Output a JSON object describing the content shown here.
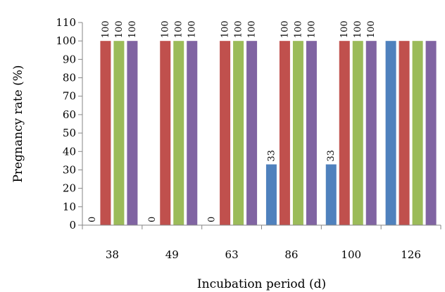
{
  "chart_data": {
    "type": "bar",
    "title": "",
    "xlabel": "Incubation period (d)",
    "ylabel": "Pregnancy rate (%)",
    "ylim": [
      0,
      110
    ],
    "yticks": [
      0,
      10,
      20,
      30,
      40,
      50,
      60,
      70,
      80,
      90,
      100,
      110
    ],
    "grid": false,
    "legend": "none",
    "categories": [
      "38",
      "49",
      "63",
      "86",
      "100",
      "126"
    ],
    "series": [
      {
        "color": "#4f81bd",
        "values": [
          0,
          0,
          0,
          33,
          33,
          100
        ],
        "labels": [
          "0",
          "0",
          "0",
          "33",
          "33",
          ""
        ]
      },
      {
        "color": "#c0504d",
        "values": [
          100,
          100,
          100,
          100,
          100,
          100
        ],
        "labels": [
          "100",
          "100",
          "100",
          "100",
          "100",
          ""
        ]
      },
      {
        "color": "#9bbb59",
        "values": [
          100,
          100,
          100,
          100,
          100,
          100
        ],
        "labels": [
          "100",
          "100",
          "100",
          "100",
          "100",
          ""
        ]
      },
      {
        "color": "#8064a2",
        "values": [
          100,
          100,
          100,
          100,
          100,
          100
        ],
        "labels": [
          "100",
          "100",
          "100",
          "100",
          "100",
          ""
        ]
      }
    ]
  }
}
